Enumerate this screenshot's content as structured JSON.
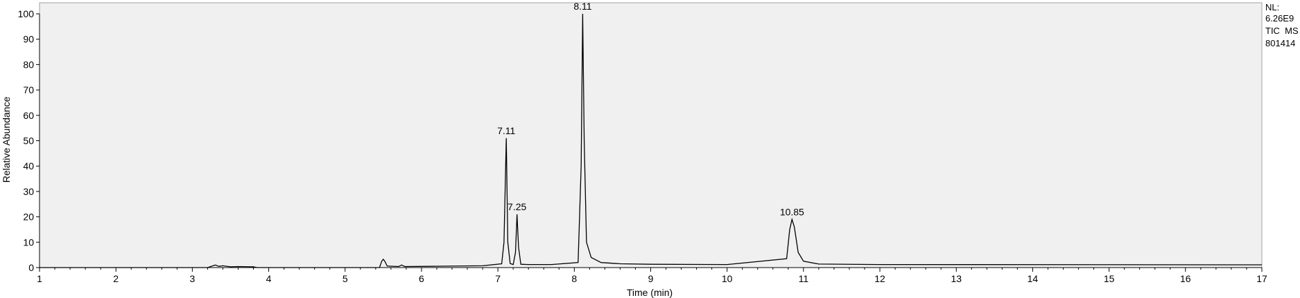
{
  "chart_data": {
    "type": "line",
    "xlabel": "Time (min)",
    "ylabel": "Relative Abundance",
    "xlim": [
      1,
      17
    ],
    "ylim": [
      0,
      100
    ],
    "xticks": [
      1,
      2,
      3,
      4,
      5,
      6,
      7,
      8,
      9,
      10,
      11,
      12,
      13,
      14,
      15,
      16,
      17
    ],
    "yticks": [
      0,
      10,
      20,
      30,
      40,
      50,
      60,
      70,
      80,
      90,
      100
    ],
    "grid": false,
    "background": "#f0f0f0",
    "line_color": "#000000",
    "peaks": [
      {
        "rt": 7.11,
        "label": "7.11",
        "height": 51
      },
      {
        "rt": 7.25,
        "label": "7.25",
        "height": 21
      },
      {
        "rt": 8.11,
        "label": "8.11",
        "height": 100
      },
      {
        "rt": 10.85,
        "label": "10.85",
        "height": 19
      }
    ],
    "series": [
      {
        "x": [
          1.0,
          3.2,
          3.3,
          3.35,
          3.4,
          3.5,
          3.6,
          3.8,
          3.85,
          5.45,
          5.48,
          5.5,
          5.52,
          5.55,
          5.7,
          5.74,
          5.78,
          6.1,
          6.8,
          7.05,
          7.08,
          7.11,
          7.13,
          7.16,
          7.2,
          7.23,
          7.25,
          7.27,
          7.3,
          7.4,
          7.7,
          8.05,
          8.09,
          8.11,
          8.13,
          8.16,
          8.22,
          8.35,
          8.6,
          9.0,
          10.0,
          10.78,
          10.82,
          10.85,
          10.88,
          10.93,
          11.0,
          11.2,
          12.0,
          17.0
        ],
        "y": [
          0.0,
          0.0,
          1.0,
          0.5,
          0.7,
          0.3,
          0.4,
          0.3,
          0.0,
          0.0,
          2.5,
          3.3,
          2.5,
          0.6,
          0.4,
          1.0,
          0.4,
          0.5,
          0.7,
          1.5,
          10.0,
          51.0,
          10.0,
          1.6,
          1.2,
          6.0,
          21.0,
          8.0,
          1.3,
          1.2,
          1.2,
          2.0,
          40.0,
          100.0,
          50.0,
          10.0,
          4.0,
          2.0,
          1.5,
          1.3,
          1.2,
          3.5,
          15.0,
          19.0,
          16.0,
          6.0,
          2.5,
          1.4,
          1.2,
          1.1
        ]
      }
    ]
  },
  "info": {
    "lines": [
      "NL:",
      "6.26E9",
      "TIC  MS",
      "801414"
    ]
  }
}
